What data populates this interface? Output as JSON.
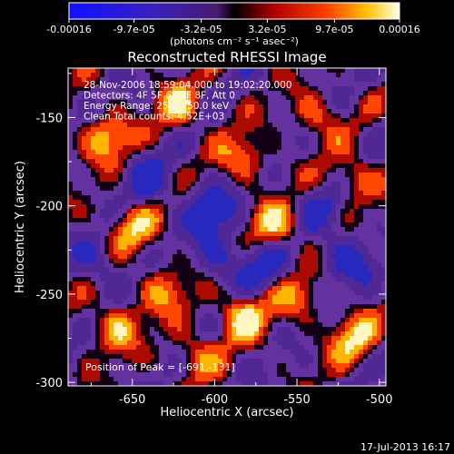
{
  "colorbar": {
    "tick_labels": [
      "-0.00016",
      "-9.7e-05",
      "-3.2e-05",
      "3.2e-05",
      "9.7e-05",
      "0.00016"
    ],
    "unit_label": "(photons cm⁻² s⁻¹ asec⁻²)",
    "range": [
      -0.00016,
      0.00016
    ]
  },
  "chart_data": {
    "type": "heatmap",
    "title": "Reconstructed RHESSI Image",
    "xlabel": "Heliocentric X (arcsec)",
    "ylabel": "Heliocentric Y (arcsec)",
    "xlim": [
      -689,
      -496
    ],
    "ylim": [
      -302,
      -122
    ],
    "x_ticks": [
      -650,
      -600,
      -550,
      -500
    ],
    "y_ticks": [
      -150,
      -200,
      -250,
      -300
    ],
    "annotations": [
      "28-Nov-2006 18:59:04.000 to 19:02:20.000",
      "Detectors: 4F 5F 6F 7F 8F, Att 0",
      "Energy Range: 25.0 - 50.0 keV",
      "Clean     Total counts: 4.52E+03"
    ],
    "peak_label": "Position of Peak = [-691,-131]",
    "grid": false
  },
  "footer": {
    "date": "17-Jul-2013 16:17"
  }
}
